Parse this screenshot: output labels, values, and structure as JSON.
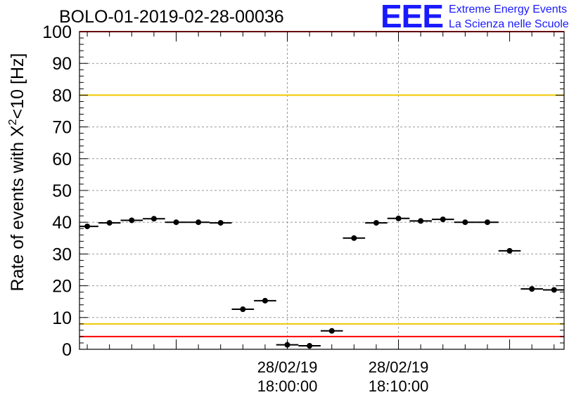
{
  "title": "BOLO-01-2019-02-28-00036",
  "logo": {
    "mark": "EEE",
    "line1": "Extreme Energy Events",
    "line2": "La Scienza nelle Scuole",
    "color": "#1a1aff"
  },
  "chart_data": {
    "type": "scatter",
    "title": "BOLO-01-2019-02-28-00036",
    "ylabel": "Rate of events with X²<10 [Hz]",
    "xlabel": "",
    "ylim": [
      0,
      100
    ],
    "xlim_minutes": [
      -18.7,
      24.9
    ],
    "yticks": [
      0,
      10,
      20,
      30,
      40,
      50,
      60,
      70,
      80,
      90,
      100
    ],
    "xticks": [
      {
        "minute": 0,
        "date": "28/02/19",
        "time": "18:00:00"
      },
      {
        "minute": 10,
        "date": "28/02/19",
        "time": "18:10:00"
      }
    ],
    "grid": true,
    "bin_width_minutes": 2,
    "points": [
      {
        "minute": -18,
        "value": 38.7
      },
      {
        "minute": -16,
        "value": 39.8
      },
      {
        "minute": -14,
        "value": 40.6
      },
      {
        "minute": -12,
        "value": 41.1
      },
      {
        "minute": -10,
        "value": 40.0
      },
      {
        "minute": -8,
        "value": 40.0
      },
      {
        "minute": -6,
        "value": 39.8
      },
      {
        "minute": -4,
        "value": 12.6
      },
      {
        "minute": -2,
        "value": 15.3
      },
      {
        "minute": 0,
        "value": 1.4
      },
      {
        "minute": 2,
        "value": 1.1
      },
      {
        "minute": 4,
        "value": 5.8
      },
      {
        "minute": 6,
        "value": 35.0
      },
      {
        "minute": 8,
        "value": 39.8
      },
      {
        "minute": 10,
        "value": 41.2
      },
      {
        "minute": 12,
        "value": 40.4
      },
      {
        "minute": 14,
        "value": 40.9
      },
      {
        "minute": 16,
        "value": 40.0
      },
      {
        "minute": 18,
        "value": 40.0
      },
      {
        "minute": 20,
        "value": 31.0
      },
      {
        "minute": 22,
        "value": 19.0
      },
      {
        "minute": 24,
        "value": 18.7
      }
    ],
    "reference_lines": [
      {
        "value": 80,
        "color": "#f0c800"
      },
      {
        "value": 8,
        "color": "#f0c800"
      },
      {
        "value": 100,
        "color": "#ff0000"
      },
      {
        "value": 4,
        "color": "#ff0000"
      }
    ]
  }
}
